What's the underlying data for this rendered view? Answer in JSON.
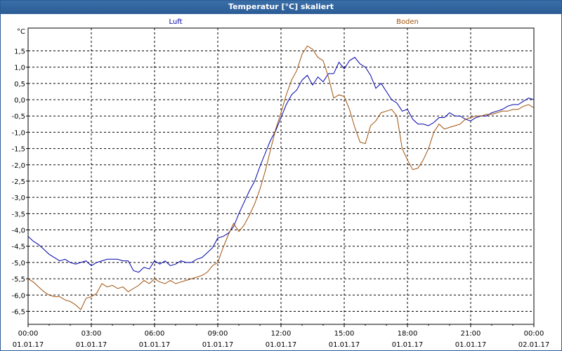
{
  "window": {
    "title": "Temperatur [°C] skaliert"
  },
  "chart_data": {
    "type": "line",
    "title": "Temperatur [°C] skaliert",
    "ylabel": "°C",
    "xlabel": "",
    "grid": true,
    "ylim": [
      -6.9,
      2.2
    ],
    "yticks": [
      -6.5,
      -6.0,
      -5.5,
      -5.0,
      -4.5,
      -4.0,
      -3.5,
      -3.0,
      -2.5,
      -2.0,
      -1.5,
      -1.0,
      -0.5,
      0.0,
      0.5,
      1.0,
      1.5
    ],
    "ytick_labels": [
      "-6,5",
      "-6,0",
      "-5,5",
      "-5,0",
      "-4,5",
      "-4,0",
      "-3,5",
      "-3,0",
      "-2,5",
      "-2,0",
      "-1,5",
      "-1,0",
      "-0,5",
      "0,0",
      "0,5",
      "1,0",
      "1,5"
    ],
    "xlim": [
      0,
      24
    ],
    "xticks": [
      0,
      3,
      6,
      9,
      12,
      15,
      18,
      21,
      24
    ],
    "xtick_time_labels": [
      "00:00",
      "03:00",
      "06:00",
      "09:00",
      "12:00",
      "15:00",
      "18:00",
      "21:00",
      "00:00"
    ],
    "xtick_date_labels": [
      "01.01.17",
      "01.01.17",
      "01.01.17",
      "01.01.17",
      "01.01.17",
      "01.01.17",
      "01.01.17",
      "01.01.17",
      "02.01.17"
    ],
    "series": [
      {
        "name": "Luft",
        "color": "#0000aa",
        "x": [
          0,
          0.25,
          0.5,
          0.75,
          1,
          1.25,
          1.5,
          1.75,
          2,
          2.25,
          2.5,
          2.75,
          3,
          3.25,
          3.5,
          3.75,
          4,
          4.25,
          4.5,
          4.75,
          5,
          5.25,
          5.5,
          5.75,
          6,
          6.25,
          6.5,
          6.75,
          7,
          7.25,
          7.5,
          7.75,
          8,
          8.25,
          8.5,
          8.75,
          9,
          9.25,
          9.5,
          9.75,
          10,
          10.25,
          10.5,
          10.75,
          11,
          11.25,
          11.5,
          11.75,
          12,
          12.25,
          12.5,
          12.75,
          13,
          13.25,
          13.5,
          13.75,
          14,
          14.25,
          14.5,
          14.75,
          15,
          15.25,
          15.5,
          15.75,
          16,
          16.25,
          16.5,
          16.75,
          17,
          17.25,
          17.5,
          17.75,
          18,
          18.25,
          18.5,
          18.75,
          19,
          19.25,
          19.5,
          19.75,
          20,
          20.25,
          20.5,
          20.75,
          21,
          21.25,
          21.5,
          21.75,
          22,
          22.25,
          22.5,
          22.75,
          23,
          23.25,
          23.5,
          23.75,
          24
        ],
        "values": [
          -4.2,
          -4.35,
          -4.45,
          -4.6,
          -4.75,
          -4.85,
          -4.95,
          -4.9,
          -5.0,
          -5.05,
          -5.0,
          -4.95,
          -5.1,
          -5.0,
          -4.95,
          -4.9,
          -4.9,
          -4.9,
          -4.95,
          -4.95,
          -5.25,
          -5.3,
          -5.15,
          -5.2,
          -4.95,
          -5.05,
          -4.95,
          -5.1,
          -5.05,
          -4.95,
          -5.0,
          -5.0,
          -4.9,
          -4.85,
          -4.7,
          -4.55,
          -4.25,
          -4.2,
          -4.1,
          -3.9,
          -3.5,
          -3.15,
          -2.8,
          -2.5,
          -2.05,
          -1.65,
          -1.25,
          -0.95,
          -0.55,
          -0.15,
          0.15,
          0.3,
          0.6,
          0.75,
          0.45,
          0.7,
          0.55,
          0.8,
          0.8,
          1.15,
          0.95,
          1.2,
          1.3,
          1.1,
          1.0,
          0.75,
          0.35,
          0.5,
          0.25,
          0.0,
          -0.1,
          -0.35,
          -0.3,
          -0.6,
          -0.75,
          -0.75,
          -0.8,
          -0.7,
          -0.55,
          -0.55,
          -0.4,
          -0.5,
          -0.5,
          -0.6,
          -0.65,
          -0.55,
          -0.5,
          -0.5,
          -0.4,
          -0.35,
          -0.3,
          -0.2,
          -0.15,
          -0.15,
          -0.05,
          0.05,
          0.0
        ]
      },
      {
        "name": "Boden",
        "color": "#a0500a",
        "x": [
          0,
          0.25,
          0.5,
          0.75,
          1,
          1.25,
          1.5,
          1.75,
          2,
          2.25,
          2.5,
          2.75,
          3,
          3.25,
          3.5,
          3.75,
          4,
          4.25,
          4.5,
          4.75,
          5,
          5.25,
          5.5,
          5.75,
          6,
          6.25,
          6.5,
          6.75,
          7,
          7.25,
          7.5,
          7.75,
          8,
          8.25,
          8.5,
          8.75,
          9,
          9.25,
          9.5,
          9.75,
          10,
          10.25,
          10.5,
          10.75,
          11,
          11.25,
          11.5,
          11.75,
          12,
          12.25,
          12.5,
          12.75,
          13,
          13.25,
          13.5,
          13.75,
          14,
          14.25,
          14.5,
          14.75,
          15,
          15.25,
          15.5,
          15.75,
          16,
          16.25,
          16.5,
          16.75,
          17,
          17.25,
          17.5,
          17.75,
          18,
          18.25,
          18.5,
          18.75,
          19,
          19.25,
          19.5,
          19.75,
          20,
          20.25,
          20.5,
          20.75,
          21,
          21.25,
          21.5,
          21.75,
          22,
          22.25,
          22.5,
          22.75,
          23,
          23.25,
          23.5,
          23.75,
          24
        ],
        "values": [
          -5.5,
          -5.6,
          -5.75,
          -5.9,
          -6.0,
          -6.05,
          -6.05,
          -6.15,
          -6.2,
          -6.3,
          -6.45,
          -6.1,
          -6.05,
          -5.95,
          -5.65,
          -5.75,
          -5.7,
          -5.8,
          -5.75,
          -5.9,
          -5.8,
          -5.7,
          -5.55,
          -5.65,
          -5.5,
          -5.6,
          -5.65,
          -5.55,
          -5.65,
          -5.6,
          -5.55,
          -5.5,
          -5.45,
          -5.4,
          -5.3,
          -5.1,
          -5.0,
          -4.55,
          -4.15,
          -3.8,
          -4.05,
          -3.85,
          -3.55,
          -3.2,
          -2.75,
          -2.2,
          -1.55,
          -0.9,
          -0.4,
          0.15,
          0.6,
          0.9,
          1.4,
          1.65,
          1.55,
          1.3,
          1.2,
          0.7,
          0.05,
          0.15,
          0.1,
          -0.3,
          -0.85,
          -1.3,
          -1.35,
          -0.8,
          -0.65,
          -0.4,
          -0.35,
          -0.3,
          -0.5,
          -1.5,
          -1.85,
          -2.15,
          -2.1,
          -1.85,
          -1.5,
          -1.0,
          -0.75,
          -0.9,
          -0.85,
          -0.8,
          -0.75,
          -0.6,
          -0.55,
          -0.5,
          -0.5,
          -0.45,
          -0.45,
          -0.4,
          -0.35,
          -0.35,
          -0.3,
          -0.3,
          -0.2,
          -0.15,
          -0.25
        ]
      }
    ]
  }
}
